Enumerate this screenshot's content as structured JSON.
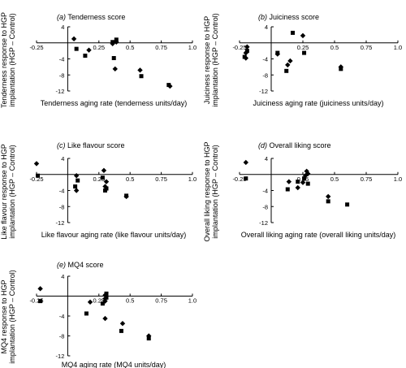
{
  "chart_data": [
    {
      "type": "scatter",
      "panel": "(a)",
      "title": "Tenderness score",
      "xlabel": "Tenderness aging rate (tenderness units/day)",
      "ylabel": [
        "Tenderness response to HGP",
        "implantation (HGP – Control)"
      ],
      "xlim": [
        -0.25,
        1.0
      ],
      "ylim": [
        -12,
        4
      ],
      "x_ticks": [
        "-0.25",
        "0.25",
        "0.5",
        "0.75",
        "1.0"
      ],
      "y_ticks": [
        "4",
        "-4",
        "-8",
        "-12"
      ],
      "series": [
        {
          "marker": "diamond",
          "x": [
            0.05,
            0.17,
            0.36,
            0.39,
            0.38,
            0.58,
            0.82
          ],
          "y": [
            1.0,
            -1.8,
            -0.2,
            0.2,
            -6.5,
            -6.8,
            -10.8
          ]
        },
        {
          "marker": "square",
          "x": [
            0.07,
            0.14,
            0.36,
            0.39,
            0.37,
            0.59,
            0.81
          ],
          "y": [
            -1.5,
            -3.2,
            0.2,
            0.8,
            -3.8,
            -8.3,
            -10.5
          ]
        }
      ]
    },
    {
      "type": "scatter",
      "panel": "(b)",
      "title": "Juiciness score",
      "xlabel": "Juiciness aging rate (juiciness units/day)",
      "ylabel": [
        "Juiciness response to HGP",
        "implantation (HGP – Control)"
      ],
      "xlim": [
        -0.25,
        1.0
      ],
      "ylim": [
        -12,
        4
      ],
      "x_ticks": [
        "-0.25",
        "0.25",
        "0.5",
        "0.75",
        "1.0"
      ],
      "y_ticks": [
        "4",
        "-4",
        "-8",
        "-12"
      ],
      "series": [
        {
          "marker": "diamond",
          "x": [
            -0.19,
            -0.2,
            -0.2,
            0.05,
            0.13,
            0.15,
            0.25,
            0.55
          ],
          "y": [
            -1.0,
            -2.5,
            -3.8,
            -2.8,
            -5.5,
            -4.5,
            1.8,
            -6.0
          ]
        },
        {
          "marker": "square",
          "x": [
            -0.19,
            -0.21,
            0.05,
            0.12,
            0.17,
            0.26,
            0.55
          ],
          "y": [
            -2.0,
            -3.5,
            -2.5,
            -7.0,
            2.5,
            -2.5,
            -6.5
          ]
        }
      ]
    },
    {
      "type": "scatter",
      "panel": "(c)",
      "title": "Like flavour score",
      "xlabel": "Like flavour aging rate (like flavour units/day)",
      "ylabel": [
        "Like flavour response to HGP",
        "implantation (HGP – Control)"
      ],
      "xlim": [
        -0.25,
        1.0
      ],
      "ylim": [
        -12,
        4
      ],
      "x_ticks": [
        "-0.25",
        "0.25",
        "0.5",
        "0.75",
        "1.0"
      ],
      "y_ticks": [
        "4",
        "-4",
        "-8",
        "-12"
      ],
      "series": [
        {
          "marker": "diamond",
          "x": [
            -0.25,
            0.07,
            0.07,
            0.29,
            0.31,
            0.3,
            0.47
          ],
          "y": [
            2.7,
            -0.3,
            -4.0,
            1.0,
            -1.8,
            -3.0,
            -5.5
          ]
        },
        {
          "marker": "square",
          "x": [
            -0.24,
            0.06,
            0.08,
            0.28,
            0.3,
            0.31,
            0.47
          ],
          "y": [
            -0.3,
            -3.0,
            -1.5,
            -0.8,
            -4.0,
            -3.5,
            -5.3
          ]
        }
      ]
    },
    {
      "type": "scatter",
      "panel": "(d)",
      "title": "Overall liking score",
      "xlabel": "Overall liking aging rate (overall liking units/day)",
      "ylabel": [
        "Overall liking response to HGP",
        "implantation (HGP – Control)"
      ],
      "xlim": [
        -0.25,
        1.0
      ],
      "ylim": [
        -12,
        4
      ],
      "x_ticks": [
        "-0.25",
        "0.25",
        "0.5",
        "0.75",
        "1.0"
      ],
      "y_ticks": [
        "4",
        "-4",
        "-8",
        "-12"
      ],
      "series": [
        {
          "marker": "diamond",
          "x": [
            -0.2,
            0.14,
            0.21,
            0.25,
            0.27,
            0.29,
            0.28,
            0.45
          ],
          "y": [
            3.0,
            -1.8,
            -3.3,
            -2.0,
            -0.3,
            0.2,
            0.8,
            -5.5
          ]
        },
        {
          "marker": "square",
          "x": [
            -0.2,
            0.13,
            0.21,
            0.26,
            0.29,
            0.45,
            0.6
          ],
          "y": [
            -1.0,
            -3.7,
            -1.8,
            -1.0,
            -2.3,
            -6.7,
            -7.5
          ]
        }
      ]
    },
    {
      "type": "scatter",
      "panel": "(e)",
      "title": "MQ4 score",
      "xlabel": "MQ4 aging rate (MQ4 units/day)",
      "ylabel": [
        "MQ4 response to HGP",
        "implantation (HGP – Control)"
      ],
      "xlim": [
        -0.25,
        1.0
      ],
      "ylim": [
        -12,
        4
      ],
      "x_ticks": [
        "-0.25",
        "0.25",
        "0.5",
        "0.75",
        "1.0"
      ],
      "y_ticks": [
        "4",
        "-4",
        "-8",
        "-12"
      ],
      "series": [
        {
          "marker": "diamond",
          "x": [
            -0.22,
            0.18,
            0.3,
            0.3,
            0.3,
            0.3,
            0.44,
            0.65
          ],
          "y": [
            1.5,
            -1.2,
            0.2,
            -0.5,
            -1.0,
            -4.5,
            -5.5,
            -8.0
          ]
        },
        {
          "marker": "square",
          "x": [
            -0.22,
            0.15,
            0.28,
            0.31,
            0.31,
            0.43,
            0.65
          ],
          "y": [
            -1.0,
            -3.5,
            -1.5,
            -0.3,
            0.5,
            -7.0,
            -8.5
          ]
        }
      ]
    }
  ]
}
